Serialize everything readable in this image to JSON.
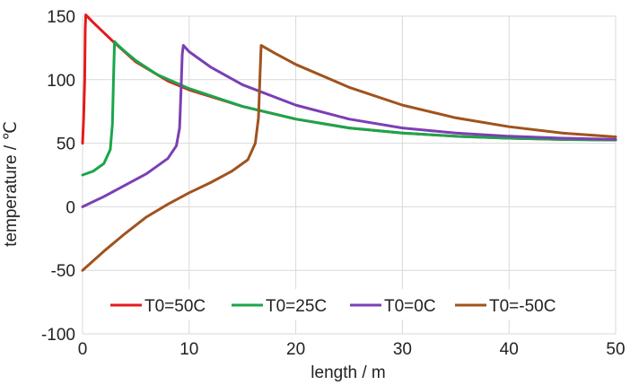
{
  "chart_data": {
    "type": "line",
    "title": "",
    "xlabel": "length / m",
    "ylabel": "temperature / ℃",
    "xlim": [
      0,
      50
    ],
    "ylim": [
      -100,
      150
    ],
    "x_ticks": [
      0,
      10,
      20,
      30,
      40,
      50
    ],
    "y_ticks": [
      -100,
      -50,
      0,
      50,
      100,
      150
    ],
    "x_tick_labels": [
      "0",
      "10",
      "20",
      "30",
      "40",
      "50"
    ],
    "y_tick_labels": [
      "-100",
      "-50",
      "0",
      "50",
      "100",
      "150"
    ],
    "grid": true,
    "legend_position": "bottom",
    "series": [
      {
        "name": "T0=50C",
        "color": "#e41a1c",
        "x": [
          0,
          0.1,
          0.2,
          0.25,
          0.3,
          1,
          2,
          3,
          5,
          8,
          10,
          15,
          20,
          25,
          30,
          35,
          40,
          45,
          50
        ],
        "y": [
          50,
          70,
          100,
          140,
          151,
          145,
          137,
          129,
          114,
          99,
          92,
          79,
          69,
          62,
          58,
          55.5,
          54,
          53,
          52.5
        ]
      },
      {
        "name": "T0=25C",
        "color": "#1aa64a",
        "x": [
          0,
          1,
          2,
          2.6,
          2.8,
          2.9,
          3.0,
          3.2,
          4,
          5,
          7,
          10,
          15,
          20,
          25,
          30,
          35,
          40,
          45,
          50
        ],
        "y": [
          25,
          28,
          34,
          45,
          65,
          100,
          130,
          128,
          122,
          115,
          104,
          93,
          79,
          69,
          62,
          58,
          55.5,
          54,
          53,
          52.5
        ]
      },
      {
        "name": "T0=0C",
        "color": "#7b3fb5",
        "x": [
          0,
          2,
          4,
          6,
          8,
          8.8,
          9.1,
          9.25,
          9.35,
          9.45,
          10,
          12,
          15,
          20,
          25,
          30,
          35,
          40,
          45,
          50
        ],
        "y": [
          0,
          8,
          17,
          26,
          38,
          48,
          62,
          95,
          120,
          127,
          122,
          110,
          96,
          80,
          69,
          62,
          58,
          55.5,
          54,
          53
        ]
      },
      {
        "name": "T0=-50C",
        "color": "#a0531e",
        "x": [
          0,
          2,
          4,
          6,
          8,
          10,
          12,
          14,
          15.5,
          16.2,
          16.5,
          16.65,
          16.75,
          18,
          20,
          25,
          30,
          35,
          40,
          45,
          50
        ],
        "y": [
          -50,
          -35,
          -21,
          -8,
          2,
          11,
          19,
          28,
          37,
          50,
          70,
          105,
          127,
          121,
          112,
          94,
          80,
          70,
          63,
          58,
          55
        ]
      }
    ]
  }
}
